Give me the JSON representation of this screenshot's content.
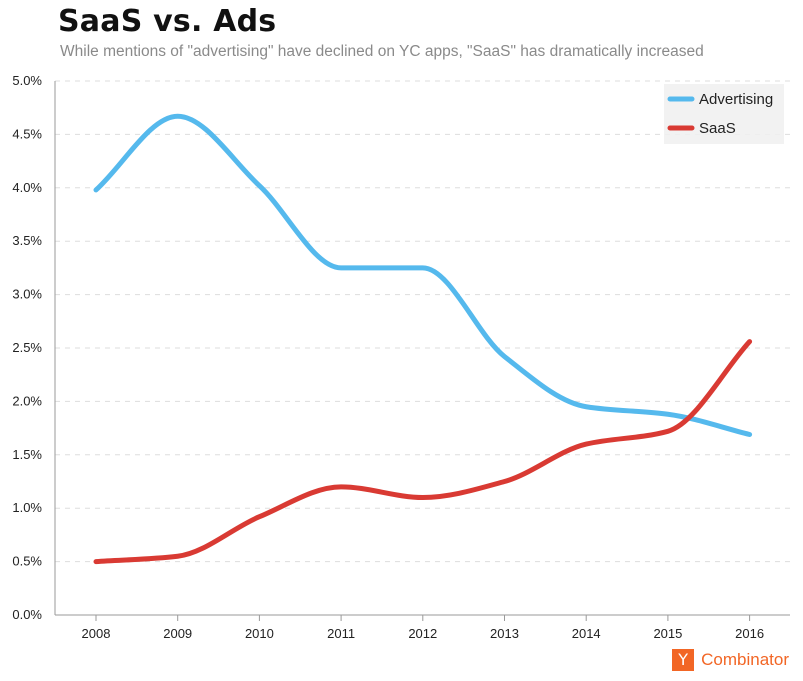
{
  "chart_data": {
    "type": "line",
    "title": "SaaS vs. Ads",
    "subtitle": "While mentions of \"advertising\" have declined on YC apps, \"SaaS\" has dramatically increased",
    "xlabel": "",
    "ylabel": "",
    "x": [
      "2008",
      "2009",
      "2010",
      "2011",
      "2012",
      "2013",
      "2014",
      "2015",
      "2016"
    ],
    "ylim": [
      0,
      5.0
    ],
    "yticks": [
      "0.0%",
      "0.5%",
      "1.0%",
      "1.5%",
      "2.0%",
      "2.5%",
      "3.0%",
      "3.5%",
      "4.0%",
      "4.5%",
      "5.0%"
    ],
    "grid": true,
    "legend_position": "top-right",
    "series": [
      {
        "name": "Advertising",
        "color": "#55b9ed",
        "values": [
          3.98,
          4.67,
          4.02,
          3.25,
          3.25,
          2.42,
          1.95,
          1.88,
          1.69
        ]
      },
      {
        "name": "SaaS",
        "color": "#d93a33",
        "values": [
          0.5,
          0.55,
          0.92,
          1.2,
          1.1,
          1.25,
          1.6,
          1.72,
          2.56
        ]
      }
    ]
  },
  "branding": {
    "logo_letter": "Y",
    "logo_text": "Combinator",
    "logo_color": "#f26625"
  }
}
